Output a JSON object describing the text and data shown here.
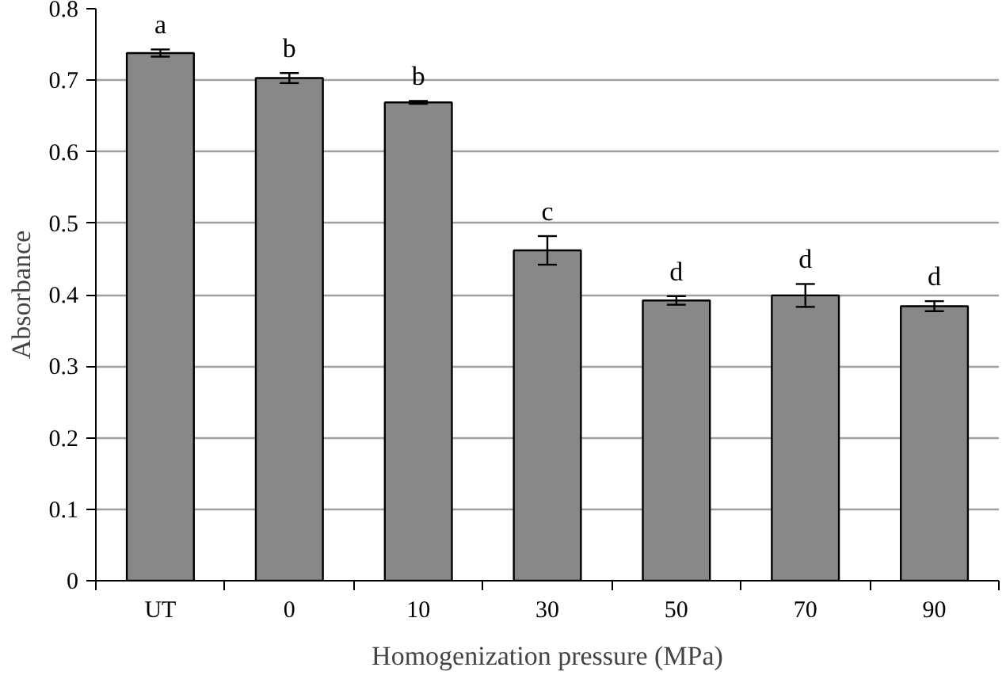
{
  "chart_data": {
    "type": "bar",
    "xlabel": "Homogenization pressure (MPa)",
    "ylabel": "Absorbance",
    "categories": [
      "UT",
      "0",
      "10",
      "30",
      "50",
      "70",
      "90"
    ],
    "values": [
      0.738,
      0.703,
      0.669,
      0.462,
      0.392,
      0.399,
      0.384
    ],
    "errors": [
      0.005,
      0.007,
      0.002,
      0.02,
      0.006,
      0.016,
      0.007
    ],
    "color": "#888888",
    "ylim": [
      0,
      0.8
    ],
    "yticks": [
      {
        "value": 0,
        "label": "0"
      },
      0.1,
      0.2,
      0.3,
      0.4,
      0.5,
      0.6,
      0.7,
      0.8
    ],
    "grid": "y",
    "annotations": [
      {
        "text": "a",
        "x": "UT",
        "y": 0.743
      },
      {
        "text": "b",
        "x": "0",
        "y": 0.71
      },
      {
        "text": "b",
        "x": "10",
        "y": 0.671
      },
      {
        "text": "c",
        "x": "30",
        "y": 0.482
      },
      {
        "text": "d",
        "x": "50",
        "y": 0.398
      },
      {
        "text": "d",
        "x": "70",
        "y": 0.415
      },
      {
        "text": "d",
        "x": "90",
        "y": 0.391
      }
    ]
  }
}
